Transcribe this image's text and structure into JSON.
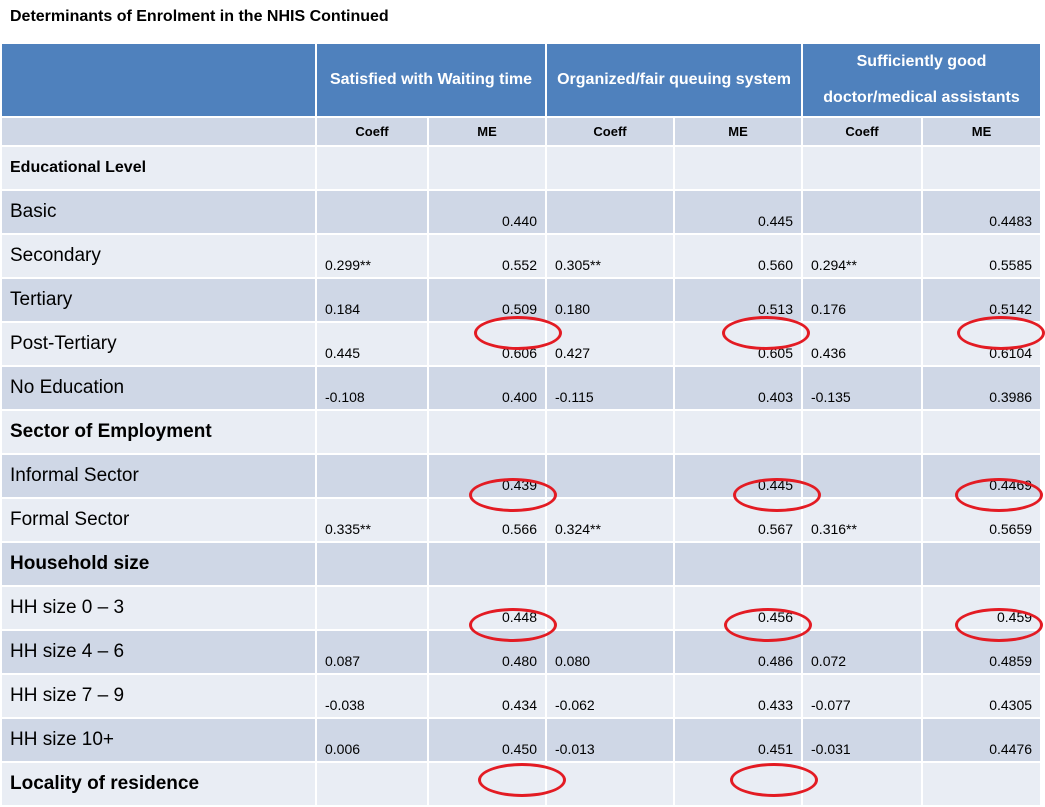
{
  "title": "Determinants of Enrolment in the NHIS Continued",
  "headers": [
    "Satisfied with Waiting time",
    "Organized/fair queuing system",
    "Sufficiently good doctor/medical assistants"
  ],
  "subheaders": [
    "Coeff",
    "ME",
    "Coeff",
    "ME",
    "Coeff",
    "ME"
  ],
  "rows": [
    {
      "label": "Educational Level",
      "style": "small",
      "cells": [
        "",
        "",
        "",
        "",
        "",
        ""
      ]
    },
    {
      "label": "Basic",
      "style": "",
      "cells": [
        "",
        "0.440",
        "",
        "0.445",
        "",
        "0.4483"
      ]
    },
    {
      "label": "Secondary",
      "style": "",
      "cells": [
        "0.299**",
        "0.552",
        "0.305**",
        "0.560",
        "0.294**",
        "0.5585"
      ]
    },
    {
      "label": "Tertiary",
      "style": "",
      "cells": [
        "0.184",
        "0.509",
        "0.180",
        "0.513",
        "0.176",
        "0.5142"
      ]
    },
    {
      "label": "Post-Tertiary",
      "style": "",
      "cells": [
        "0.445",
        "0.606",
        "0.427",
        "0.605",
        "0.436",
        "0.6104"
      ]
    },
    {
      "label": "No Education",
      "style": "",
      "cells": [
        "-0.108",
        "0.400",
        "-0.115",
        "0.403",
        "-0.135",
        "0.3986"
      ]
    },
    {
      "label": "Sector of Employment",
      "style": "bold",
      "cells": [
        "",
        "",
        "",
        "",
        "",
        ""
      ]
    },
    {
      "label": "Informal Sector",
      "style": "",
      "cells": [
        "",
        "0.439",
        "",
        "0.445",
        "",
        "0.4469"
      ]
    },
    {
      "label": "Formal Sector",
      "style": "",
      "cells": [
        "0.335**",
        "0.566",
        "0.324**",
        "0.567",
        "0.316**",
        "0.5659"
      ]
    },
    {
      "label": "Household size",
      "style": "bold",
      "cells": [
        "",
        "",
        "",
        "",
        "",
        ""
      ]
    },
    {
      "label": "HH size 0 – 3",
      "style": "",
      "cells": [
        "",
        "0.448",
        "",
        "0.456",
        "",
        "0.459"
      ]
    },
    {
      "label": "HH size 4 – 6",
      "style": "",
      "cells": [
        "0.087",
        "0.480",
        "0.080",
        "0.486",
        "0.072",
        "0.4859"
      ]
    },
    {
      "label": "HH size 7 – 9",
      "style": "",
      "cells": [
        "-0.038",
        "0.434",
        "-0.062",
        "0.433",
        "-0.077",
        "0.4305"
      ]
    },
    {
      "label": "HH size 10+",
      "style": "",
      "cells": [
        "0.006",
        "0.450",
        "-0.013",
        "0.451",
        "-0.031",
        "0.4476"
      ]
    },
    {
      "label": "Locality of residence",
      "style": "bold",
      "cells": [
        "",
        "",
        "",
        "",
        "",
        ""
      ]
    }
  ],
  "annotation_color": "#e31b23"
}
